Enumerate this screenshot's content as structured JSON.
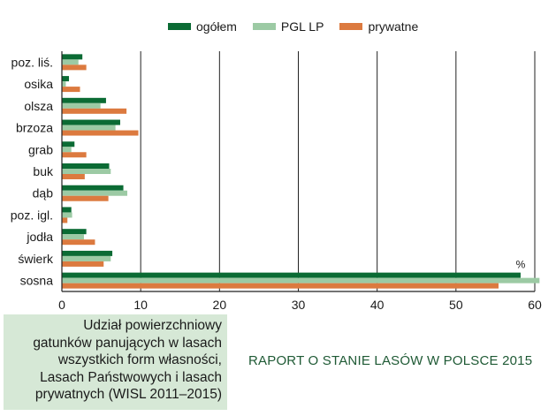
{
  "legend": {
    "items": [
      {
        "label": "ogółem",
        "color": "#0b6b34"
      },
      {
        "label": "PGL LP",
        "color": "#9ccaa4"
      },
      {
        "label": "prywatne",
        "color": "#dc7a3f"
      }
    ]
  },
  "caption": {
    "lines": [
      "Udział powierzchniowy",
      "gatunków panujących w lasach",
      "wszystkich form własności,",
      "Lasach Państwowych i lasach",
      "prywatnych (WISL 2011–2015)"
    ]
  },
  "report_title": "RAPORT O STANIE LASÓW W POLSCE 2015",
  "chart_data": {
    "type": "bar",
    "orientation": "horizontal",
    "unit_label": "%",
    "categories": [
      "poz. liś.",
      "osika",
      "olsza",
      "brzoza",
      "grab",
      "buk",
      "dąb",
      "poz. igl.",
      "jodła",
      "świerk",
      "sosna"
    ],
    "series": [
      {
        "name": "ogółem",
        "color": "#0b6b34",
        "values": [
          2.6,
          0.9,
          5.6,
          7.4,
          1.6,
          6.0,
          7.8,
          1.2,
          3.1,
          6.4,
          58.2
        ]
      },
      {
        "name": "PGL LP",
        "color": "#9ccaa4",
        "values": [
          2.1,
          0.5,
          4.9,
          6.8,
          1.2,
          6.2,
          8.3,
          1.3,
          2.8,
          6.2,
          60.6
        ]
      },
      {
        "name": "prywatne",
        "color": "#dc7a3f",
        "values": [
          3.1,
          2.3,
          8.2,
          9.7,
          3.1,
          2.9,
          5.9,
          0.7,
          4.2,
          5.3,
          55.4
        ]
      }
    ],
    "xlim": [
      0,
      60
    ],
    "xticks": [
      0,
      10,
      20,
      30,
      40,
      50,
      60
    ],
    "grid": true,
    "legend_position": "top"
  }
}
